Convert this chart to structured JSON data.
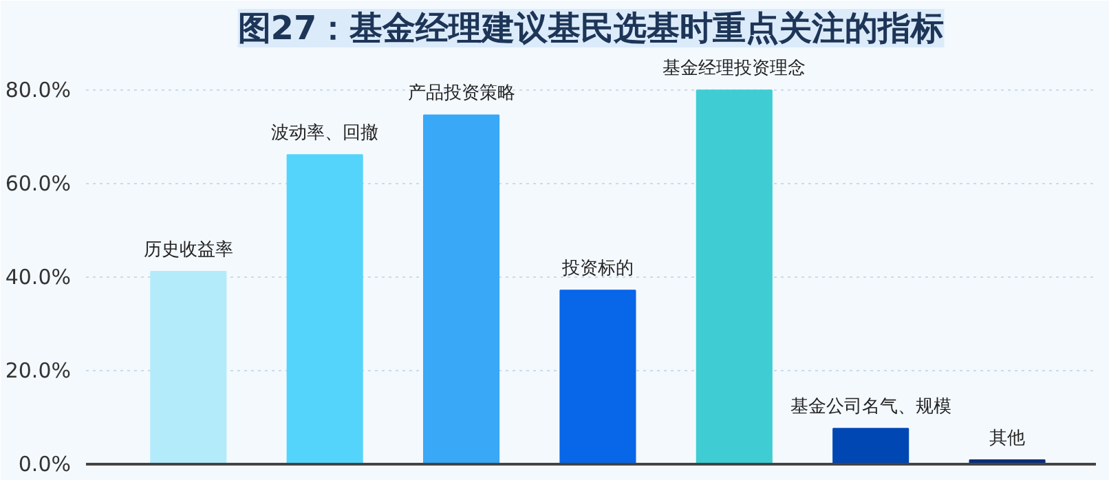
{
  "chart_data": {
    "type": "bar",
    "title": "图27：基金经理建议基民选基时重点关注的指标",
    "categories": [
      "历史收益率",
      "波动率、回撤",
      "产品投资策略",
      "投资标的",
      "基金经理投资理念",
      "基金公司名气、规模",
      "其他"
    ],
    "values": [
      41.2,
      66.2,
      74.7,
      37.2,
      80.0,
      7.6,
      0.9
    ],
    "colors": [
      "#b3ebfb",
      "#55d4fb",
      "#38a8f7",
      "#0866e8",
      "#3fcdd3",
      "#0047b3",
      "#0a2f7a"
    ],
    "ylim": [
      0,
      88
    ],
    "yticks": [
      {
        "value": 0,
        "label": "0.0%"
      },
      {
        "value": 20,
        "label": "20.0%"
      },
      {
        "value": 40,
        "label": "40.0%"
      },
      {
        "value": 60,
        "label": "60.0%"
      },
      {
        "value": 80,
        "label": "80.0%"
      }
    ],
    "grid": "y",
    "tick_labels": "y"
  }
}
